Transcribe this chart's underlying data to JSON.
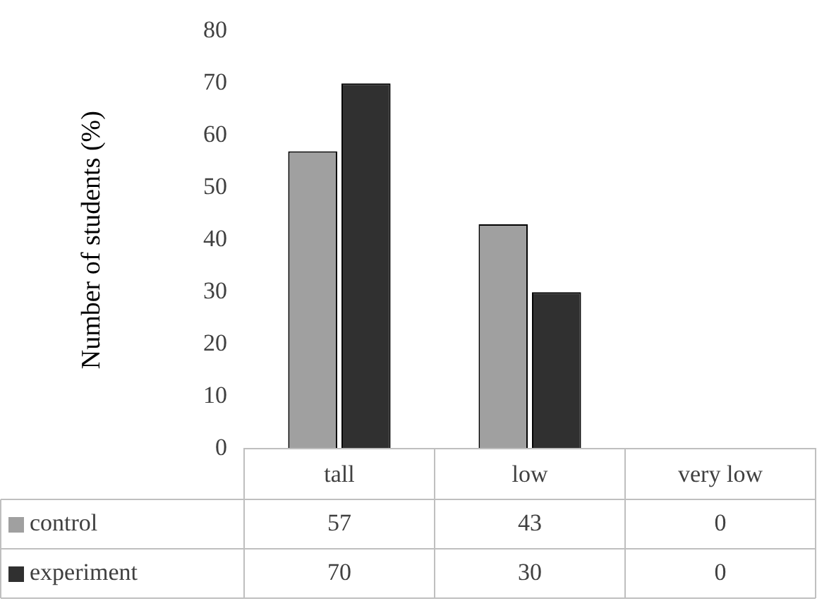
{
  "chart_data": {
    "type": "bar",
    "ylabel": "Number of students (%)",
    "categories": [
      "tall",
      "low",
      "very low"
    ],
    "series": [
      {
        "name": "control",
        "color": "#a0a0a0",
        "values": [
          57,
          43,
          0
        ]
      },
      {
        "name": "experiment",
        "color": "#303030",
        "values": [
          70,
          30,
          0
        ]
      }
    ],
    "ylim": [
      0,
      80
    ],
    "yticks": [
      0,
      10,
      20,
      30,
      40,
      50,
      60,
      70,
      80
    ],
    "grid": false,
    "legend": "bottom",
    "data_labels": true
  }
}
